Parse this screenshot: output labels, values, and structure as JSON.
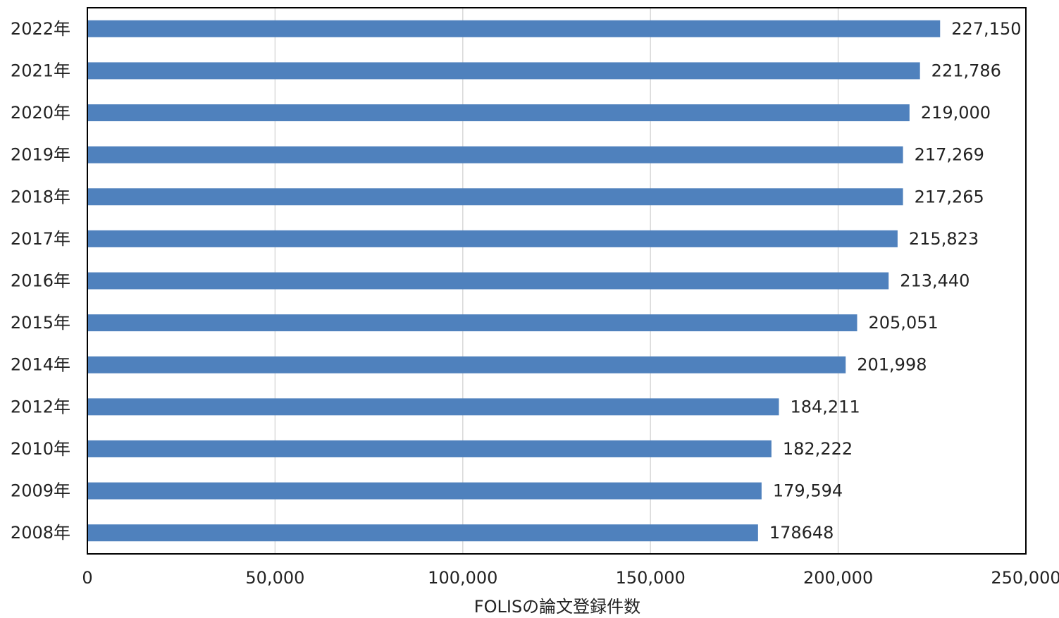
{
  "chart_data": {
    "type": "bar",
    "orientation": "horizontal",
    "categories": [
      "2022年",
      "2021年",
      "2020年",
      "2019年",
      "2018年",
      "2017年",
      "2016年",
      "2015年",
      "2014年",
      "2012年",
      "2010年",
      "2009年",
      "2008年"
    ],
    "values": [
      227150,
      221786,
      219000,
      217269,
      217265,
      215823,
      213440,
      205051,
      201998,
      184211,
      182222,
      179594,
      178648
    ],
    "data_labels": [
      "227,150",
      "221,786",
      "219,000",
      "217,269",
      "217,265",
      "215,823",
      "213,440",
      "205,051",
      "201,998",
      "184,211",
      "182,222",
      "179,594",
      "178648"
    ],
    "xlabel": "FOLISの論文登録件数",
    "xlim": [
      0,
      250000
    ],
    "x_ticks": [
      0,
      50000,
      100000,
      150000,
      200000,
      250000
    ],
    "x_tick_labels": [
      "0",
      "50,000",
      "100,000",
      "150,000",
      "200,000",
      "250,000"
    ],
    "grid": "vertical",
    "bar_color": "#4f81bd",
    "grid_color": "#d9d9d9"
  }
}
